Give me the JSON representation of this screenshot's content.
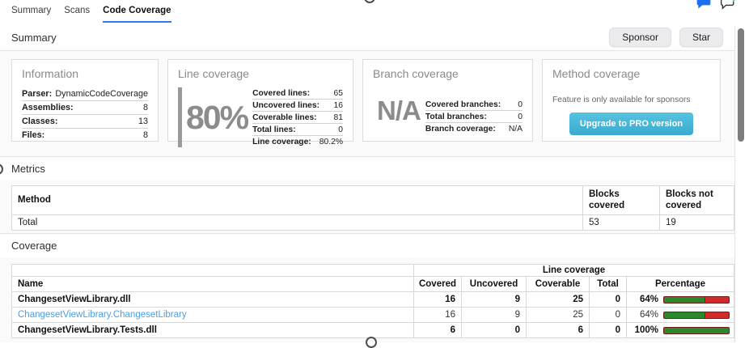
{
  "tabs": {
    "items": [
      {
        "label": "Summary",
        "active": false
      },
      {
        "label": "Scans",
        "active": false
      },
      {
        "label": "Code Coverage",
        "active": true
      }
    ]
  },
  "icons": {
    "chat": "speech-bubble-filled",
    "add_comment": "speech-bubble-add"
  },
  "summary": {
    "title": "Summary",
    "buttons": {
      "sponsor": "Sponsor",
      "star": "Star"
    },
    "information": {
      "title": "Information",
      "rows": [
        {
          "label": "Parser:",
          "value": "DynamicCodeCoverage"
        },
        {
          "label": "Assemblies:",
          "value": "8"
        },
        {
          "label": "Classes:",
          "value": "13"
        },
        {
          "label": "Files:",
          "value": "8"
        }
      ]
    },
    "line_coverage": {
      "title": "Line coverage",
      "big_value": "80%",
      "rows": [
        {
          "label": "Covered lines:",
          "value": "65"
        },
        {
          "label": "Uncovered lines:",
          "value": "16"
        },
        {
          "label": "Coverable lines:",
          "value": "81"
        },
        {
          "label": "Total lines:",
          "value": "0"
        },
        {
          "label": "Line coverage:",
          "value": "80.2%"
        }
      ]
    },
    "branch_coverage": {
      "title": "Branch coverage",
      "big_value": "N/A",
      "rows": [
        {
          "label": "Covered branches:",
          "value": "0"
        },
        {
          "label": "Total branches:",
          "value": "0"
        },
        {
          "label": "Branch coverage:",
          "value": "N/A"
        }
      ]
    },
    "method_coverage": {
      "title": "Method coverage",
      "note": "Feature is only available for sponsors",
      "button": "Upgrade to PRO version"
    }
  },
  "metrics": {
    "title": "Metrics",
    "headers": [
      "Method",
      "Blocks covered",
      "Blocks not covered"
    ],
    "total_row": {
      "name": "Total",
      "blocks_covered": "53",
      "blocks_not_covered": "19"
    }
  },
  "coverage": {
    "title": "Coverage",
    "group_header": "Line coverage",
    "headers": [
      "Name",
      "Covered",
      "Uncovered",
      "Coverable",
      "Total",
      "Percentage"
    ],
    "rows": [
      {
        "name": "ChangesetViewLibrary.dll",
        "covered": "16",
        "uncovered": "9",
        "coverable": "25",
        "total": "0",
        "percentage": "64%",
        "pct": 64,
        "style": "bold",
        "link": false
      },
      {
        "name": "ChangesetViewLibrary.ChangesetLibrary",
        "covered": "16",
        "uncovered": "9",
        "coverable": "25",
        "total": "0",
        "percentage": "64%",
        "pct": 64,
        "style": "link",
        "link": true
      },
      {
        "name": "ChangesetViewLibrary.Tests.dll",
        "covered": "6",
        "uncovered": "0",
        "coverable": "6",
        "total": "0",
        "percentage": "100%",
        "pct": 100,
        "style": "bold",
        "link": false
      }
    ]
  },
  "colors": {
    "accent_blue": "#3478f6",
    "link_blue": "#4a9ee0",
    "bar_green": "#2d882d",
    "bar_red": "#d22b2b",
    "pro_button": "#45b7d7",
    "icon_blue": "#1d6ff2",
    "badge_green": "#2ea44f"
  }
}
